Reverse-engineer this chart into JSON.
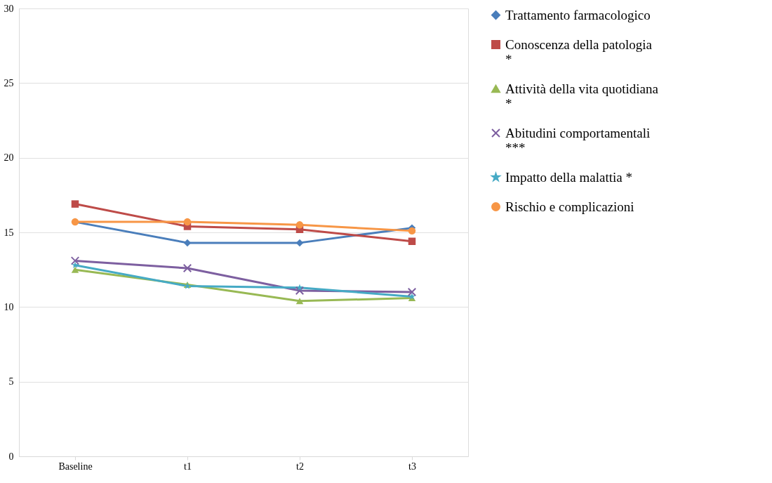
{
  "chart_data": {
    "type": "line",
    "categories": [
      "Baseline",
      "t1",
      "t2",
      "t3"
    ],
    "series": [
      {
        "name": "Trattamento farmacologico",
        "color": "#4a7ebb",
        "marker": "diamond",
        "values": [
          15.7,
          14.3,
          14.3,
          15.3
        ]
      },
      {
        "name": "Conoscenza della patologia *",
        "color": "#be4b48",
        "marker": "square",
        "values": [
          16.9,
          15.4,
          15.2,
          14.4
        ]
      },
      {
        "name": "Attività della vita quotidiana *",
        "color": "#98b954",
        "marker": "triangle",
        "values": [
          12.5,
          11.5,
          10.4,
          10.6
        ]
      },
      {
        "name": "Abitudini comportamentali ***",
        "color": "#7d5fa0",
        "marker": "cross",
        "values": [
          13.1,
          12.6,
          11.1,
          11.0
        ]
      },
      {
        "name": "Impatto della malattia *",
        "color": "#46aac5",
        "marker": "star",
        "values": [
          12.8,
          11.4,
          11.3,
          10.7
        ]
      },
      {
        "name": "Rischio e complicazioni",
        "color": "#f79646",
        "marker": "circle",
        "values": [
          15.7,
          15.7,
          15.5,
          15.1
        ]
      }
    ],
    "ylim": [
      0,
      30
    ],
    "yticks": [
      0,
      5,
      10,
      15,
      20,
      25,
      30
    ],
    "grid": "y",
    "legend": "right",
    "line_style": "solid"
  }
}
